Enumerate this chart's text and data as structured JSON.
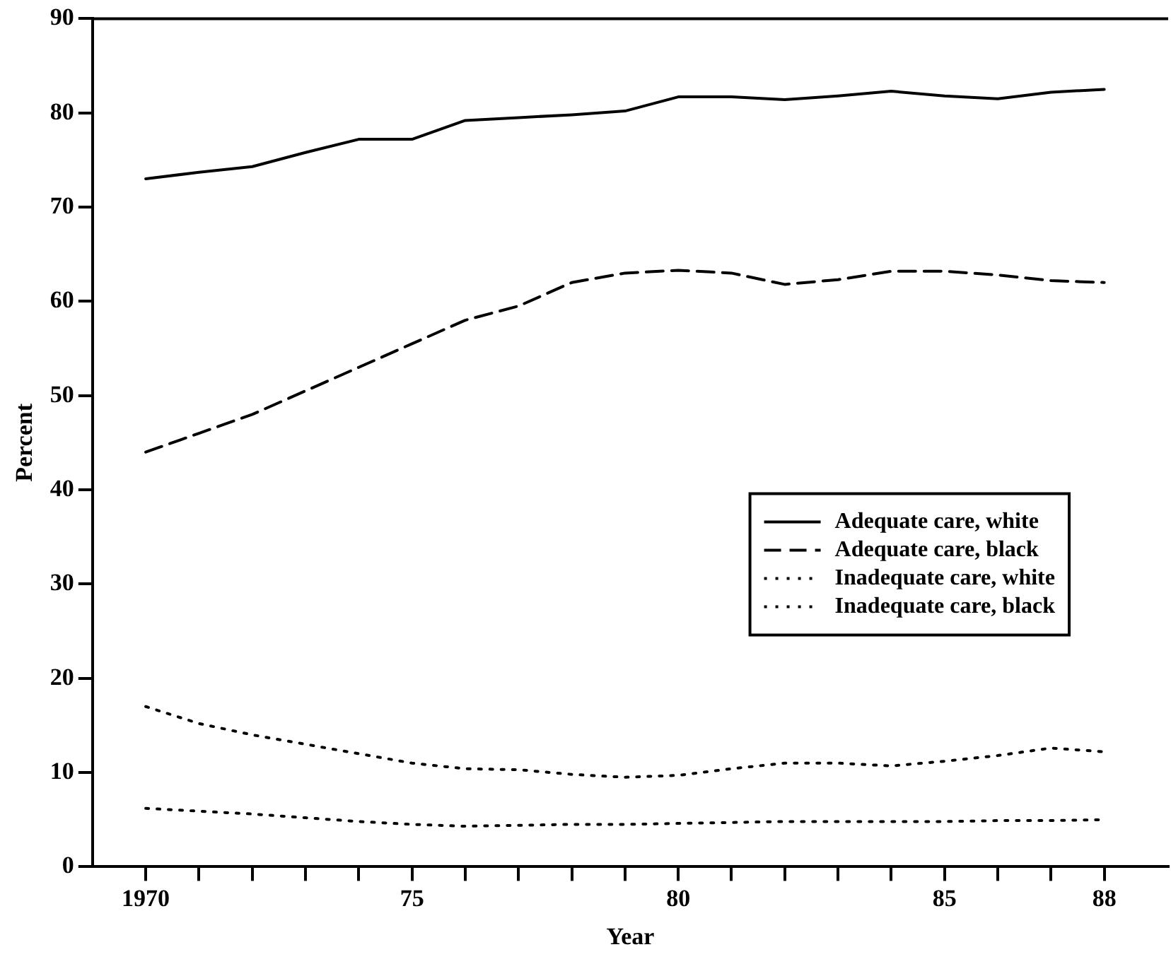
{
  "chart_data": {
    "type": "line",
    "xlabel": "Year",
    "ylabel": "Percent",
    "x": [
      1970,
      1971,
      1972,
      1973,
      1974,
      1975,
      1976,
      1977,
      1978,
      1979,
      1980,
      1981,
      1982,
      1983,
      1984,
      1985,
      1986,
      1987,
      1988
    ],
    "series": [
      {
        "name": "Adequate care, white",
        "color": "#000000",
        "line_style": "solid",
        "values": [
          73,
          73.7,
          74.3,
          75.8,
          77.2,
          77.2,
          79.2,
          79.5,
          79.8,
          80.2,
          81.7,
          81.7,
          81.4,
          81.8,
          82.3,
          81.8,
          81.5,
          82.2,
          82.5
        ]
      },
      {
        "name": "Adequate care, black",
        "color": "#000000",
        "line_style": "dashed",
        "values": [
          44,
          46,
          48,
          50.5,
          53,
          55.5,
          58,
          59.5,
          62,
          63,
          63.3,
          63,
          61.8,
          62.3,
          63.2,
          63.2,
          62.8,
          62.2,
          62
        ]
      },
      {
        "name": "Inadequate care, white",
        "color": "#000000",
        "line_style": "dotted",
        "values": [
          6.2,
          5.9,
          5.6,
          5.2,
          4.8,
          4.5,
          4.3,
          4.4,
          4.5,
          4.5,
          4.6,
          4.7,
          4.8,
          4.8,
          4.8,
          4.8,
          4.9,
          4.9,
          5.0
        ]
      },
      {
        "name": "Inadequate care, black",
        "color": "#000000",
        "line_style": "dotted",
        "values": [
          17,
          15.2,
          14,
          13,
          12,
          11,
          10.4,
          10.3,
          9.8,
          9.5,
          9.7,
          10.4,
          11,
          11,
          10.7,
          11.2,
          11.8,
          12.6,
          12.2
        ]
      }
    ],
    "xlim": [
      1969,
      1989.2
    ],
    "xticks": [
      {
        "value": 1970,
        "label": "1970"
      },
      {
        "value": 1971,
        "label": null
      },
      {
        "value": 1972,
        "label": null
      },
      {
        "value": 1973,
        "label": null
      },
      {
        "value": 1974,
        "label": null
      },
      {
        "value": 1975,
        "label": "75"
      },
      {
        "value": 1976,
        "label": null
      },
      {
        "value": 1977,
        "label": null
      },
      {
        "value": 1978,
        "label": null
      },
      {
        "value": 1979,
        "label": null
      },
      {
        "value": 1980,
        "label": "80"
      },
      {
        "value": 1981,
        "label": null
      },
      {
        "value": 1982,
        "label": null
      },
      {
        "value": 1983,
        "label": null
      },
      {
        "value": 1984,
        "label": null
      },
      {
        "value": 1985,
        "label": "85"
      },
      {
        "value": 1986,
        "label": null
      },
      {
        "value": 1987,
        "label": null
      },
      {
        "value": 1988,
        "label": "88"
      }
    ],
    "ylim": [
      0,
      90
    ],
    "yticks": [
      0,
      10,
      20,
      30,
      40,
      50,
      60,
      70,
      80,
      90
    ],
    "grid": false,
    "legend": "right",
    "marker": "none"
  }
}
